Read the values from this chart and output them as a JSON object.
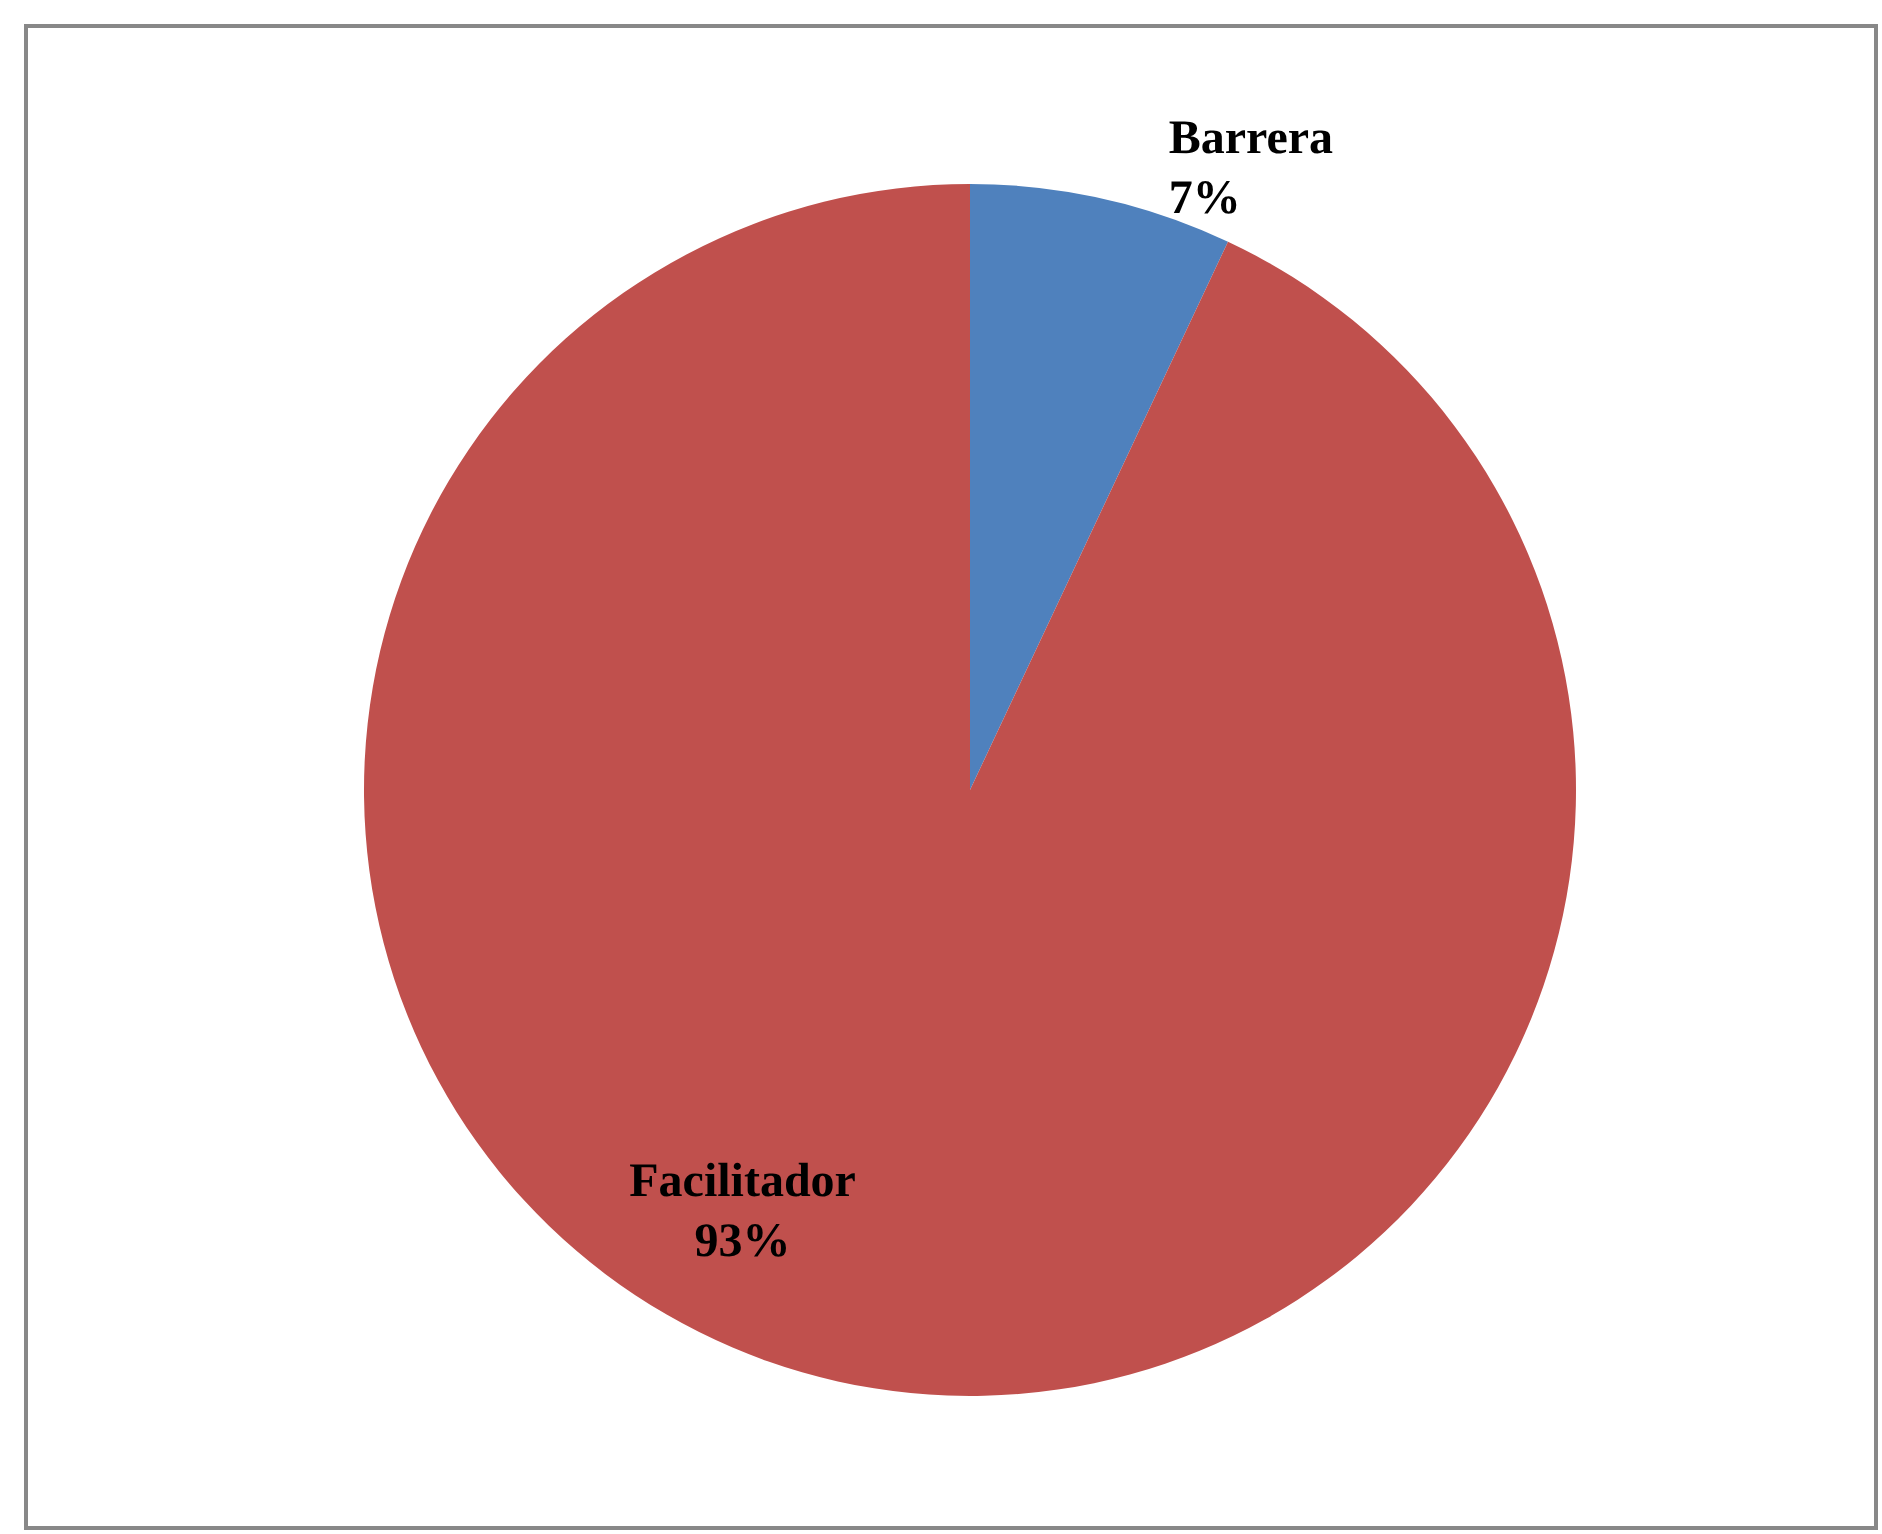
{
  "chart_data": {
    "type": "pie",
    "categories": [
      "Barrera",
      "Facilitador"
    ],
    "values": [
      7,
      93
    ],
    "colors": [
      "#4f81bd",
      "#c0504d"
    ],
    "value_labels": [
      "7%",
      "93%"
    ]
  }
}
